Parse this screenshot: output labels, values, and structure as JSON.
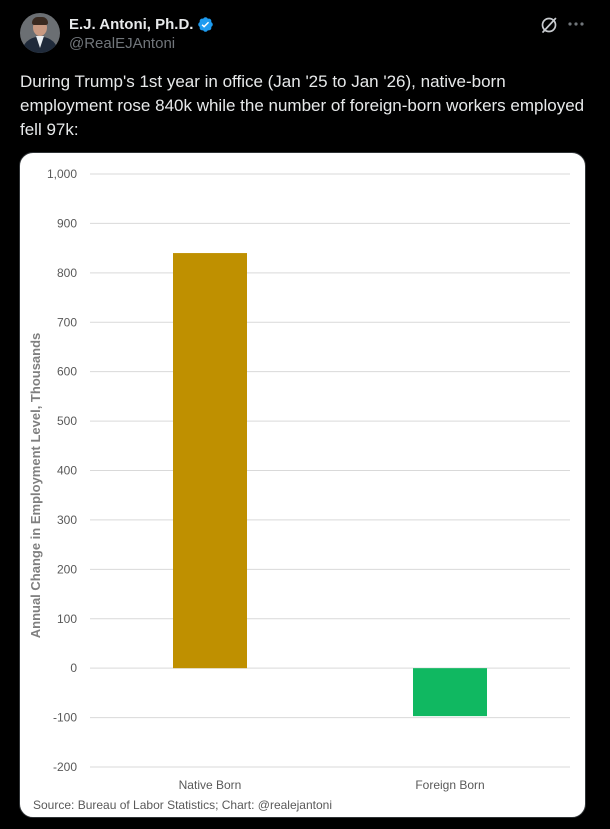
{
  "author": {
    "display_name": "E.J. Antoni, Ph.D.",
    "handle": "@RealEJAntoni",
    "verified": true,
    "avatar_icon": "avatar-photo",
    "verified_icon": "verified-badge-icon",
    "verified_color": "#1d9bf0"
  },
  "actions": {
    "grok_icon": "grok-icon",
    "more_icon": "more-options-icon"
  },
  "tweet": {
    "text": "During Trump's 1st year in office (Jan '25 to Jan '26), native-born employment rose 840k while the number of foreign-born workers employed fell 97k:"
  },
  "chart_data": {
    "type": "bar",
    "categories": [
      "Native Born",
      "Foreign Born"
    ],
    "values": [
      840,
      -97
    ],
    "colors": [
      "#bf9000",
      "#10b861"
    ],
    "title": "",
    "xlabel": "",
    "ylabel": "Annual Change in Employment Level, Thousands",
    "ylim": [
      -200,
      1000
    ],
    "yticks": [
      -200,
      -100,
      0,
      100,
      200,
      300,
      400,
      500,
      600,
      700,
      800,
      900,
      1000
    ],
    "ytick_labels": [
      "-200",
      "-100",
      "0",
      "100",
      "200",
      "300",
      "400",
      "500",
      "600",
      "700",
      "800",
      "900",
      "1,000"
    ],
    "grid": true,
    "legend": "none",
    "source": "Source: Bureau of Labor Statistics; Chart: @realejantoni"
  },
  "theme": {
    "background": "#000000",
    "text": "#e7e9ea",
    "muted": "#71767b"
  }
}
